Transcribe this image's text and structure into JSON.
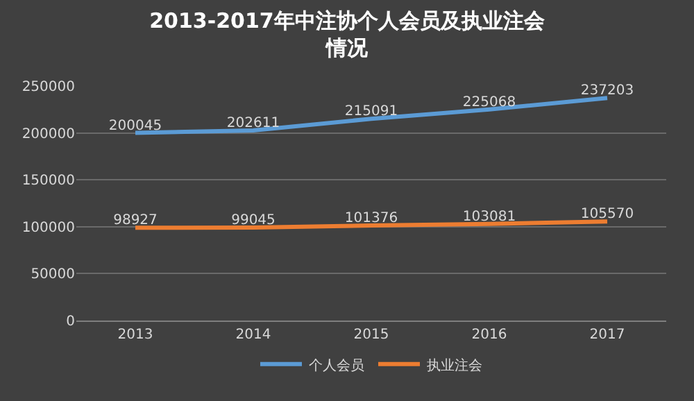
{
  "chart_data": {
    "type": "line",
    "title": "2013-2017年中注协个人会员及执业注会情况",
    "categories": [
      "2013",
      "2014",
      "2015",
      "2016",
      "2017"
    ],
    "series": [
      {
        "name": "个人会员",
        "color": "#5b9bd5",
        "values": [
          200045,
          202611,
          215091,
          225068,
          237203
        ]
      },
      {
        "name": "执业注会",
        "color": "#ed7d31",
        "values": [
          98927,
          99045,
          101376,
          103081,
          105570
        ]
      }
    ],
    "ylim": [
      0,
      250000
    ],
    "yticks": [
      0,
      50000,
      100000,
      150000,
      200000,
      250000
    ],
    "grid": "y",
    "legend": "bottom",
    "data_labels": true,
    "marker": "none",
    "line_style": "solid"
  }
}
